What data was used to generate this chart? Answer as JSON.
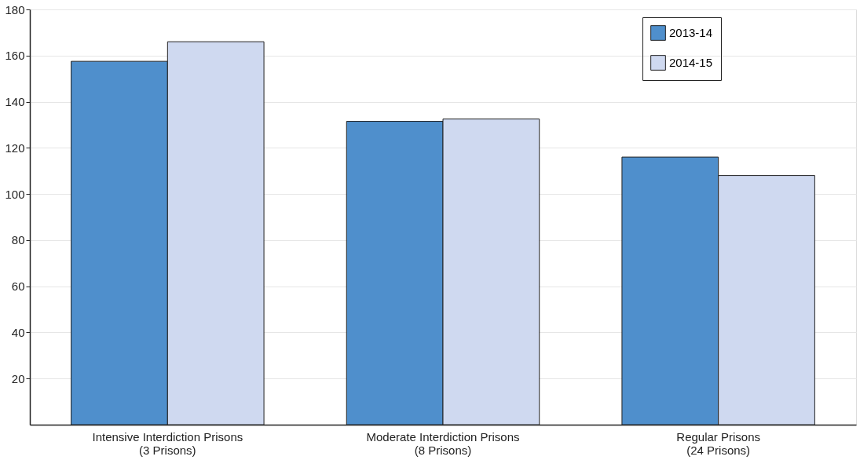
{
  "chart_data": {
    "type": "bar",
    "categories": [
      "Intensive Interdiction Prisons\n(3 Prisons)",
      "Moderate Interdiction Prisons\n(8 Prisons)",
      "Regular Prisons\n(24 Prisons)"
    ],
    "series": [
      {
        "name": "2013-14",
        "color": "#4f8fcc",
        "values": [
          157.5,
          131.5,
          116
        ]
      },
      {
        "name": "2014-15",
        "color": "#cfd9f0",
        "values": [
          166,
          132.5,
          108
        ]
      }
    ],
    "ylim": [
      0,
      180
    ],
    "yticks": [
      20,
      40,
      60,
      80,
      100,
      120,
      140,
      160,
      180
    ],
    "grid": "y",
    "legend": "top right"
  }
}
